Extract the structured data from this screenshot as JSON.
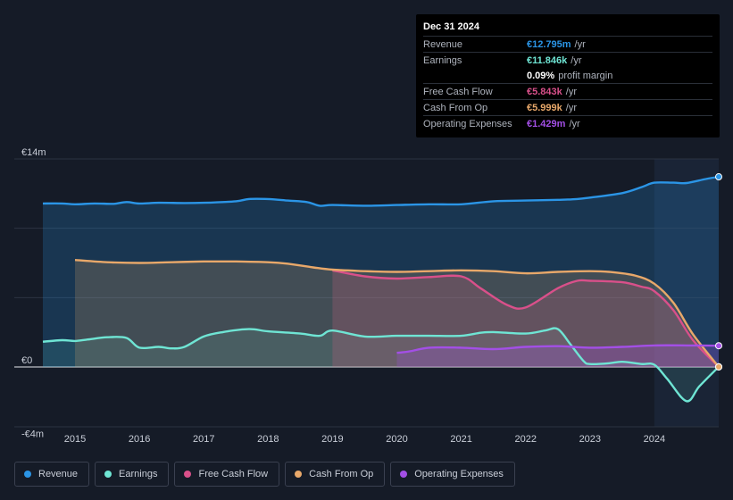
{
  "chart_data": {
    "type": "area",
    "y_labels": [
      "€14m",
      "€0",
      "-€4m"
    ],
    "x_ticks": [
      "2015",
      "2016",
      "2017",
      "2018",
      "2019",
      "2020",
      "2021",
      "2022",
      "2023",
      "2024"
    ],
    "ylim": [
      -4,
      14
    ],
    "xlim": [
      2014.5,
      2025.0
    ],
    "forecast_start": 2024.0,
    "series": [
      {
        "name": "Revenue",
        "color": "#2b95e6",
        "points": [
          [
            2014.5,
            11.0
          ],
          [
            2014.8,
            11.0
          ],
          [
            2015.0,
            10.95
          ],
          [
            2015.3,
            11.0
          ],
          [
            2015.6,
            10.98
          ],
          [
            2015.8,
            11.1
          ],
          [
            2016.0,
            11.0
          ],
          [
            2016.3,
            11.05
          ],
          [
            2016.7,
            11.03
          ],
          [
            2017.0,
            11.05
          ],
          [
            2017.5,
            11.15
          ],
          [
            2017.7,
            11.3
          ],
          [
            2018.0,
            11.3
          ],
          [
            2018.3,
            11.2
          ],
          [
            2018.6,
            11.1
          ],
          [
            2018.8,
            10.85
          ],
          [
            2019.0,
            10.9
          ],
          [
            2019.5,
            10.85
          ],
          [
            2020.0,
            10.9
          ],
          [
            2020.5,
            10.95
          ],
          [
            2021.0,
            10.95
          ],
          [
            2021.5,
            11.15
          ],
          [
            2022.0,
            11.2
          ],
          [
            2022.5,
            11.25
          ],
          [
            2022.8,
            11.3
          ],
          [
            2023.0,
            11.4
          ],
          [
            2023.5,
            11.7
          ],
          [
            2023.8,
            12.1
          ],
          [
            2024.0,
            12.4
          ],
          [
            2024.3,
            12.4
          ],
          [
            2024.5,
            12.38
          ],
          [
            2024.8,
            12.65
          ],
          [
            2025.0,
            12.795
          ]
        ]
      },
      {
        "name": "Earnings",
        "color": "#6fe5d4",
        "points": [
          [
            2014.5,
            1.7
          ],
          [
            2014.8,
            1.8
          ],
          [
            2015.0,
            1.75
          ],
          [
            2015.2,
            1.85
          ],
          [
            2015.5,
            2.0
          ],
          [
            2015.8,
            1.95
          ],
          [
            2016.0,
            1.3
          ],
          [
            2016.3,
            1.35
          ],
          [
            2016.5,
            1.25
          ],
          [
            2016.7,
            1.35
          ],
          [
            2017.0,
            2.05
          ],
          [
            2017.3,
            2.35
          ],
          [
            2017.7,
            2.55
          ],
          [
            2018.0,
            2.4
          ],
          [
            2018.5,
            2.25
          ],
          [
            2018.8,
            2.1
          ],
          [
            2019.0,
            2.45
          ],
          [
            2019.5,
            2.05
          ],
          [
            2020.0,
            2.1
          ],
          [
            2020.5,
            2.1
          ],
          [
            2021.0,
            2.1
          ],
          [
            2021.3,
            2.3
          ],
          [
            2021.5,
            2.35
          ],
          [
            2022.0,
            2.25
          ],
          [
            2022.3,
            2.45
          ],
          [
            2022.5,
            2.55
          ],
          [
            2022.7,
            1.5
          ],
          [
            2022.9,
            0.4
          ],
          [
            2023.0,
            0.2
          ],
          [
            2023.3,
            0.25
          ],
          [
            2023.5,
            0.35
          ],
          [
            2023.8,
            0.2
          ],
          [
            2024.0,
            0.15
          ],
          [
            2024.2,
            -0.8
          ],
          [
            2024.5,
            -2.3
          ],
          [
            2024.7,
            -1.3
          ],
          [
            2025.0,
            0.011846
          ]
        ]
      },
      {
        "name": "Free Cash Flow",
        "color": "#d9508a",
        "points": [
          [
            2019.0,
            6.5
          ],
          [
            2019.5,
            6.1
          ],
          [
            2020.0,
            5.95
          ],
          [
            2020.5,
            6.05
          ],
          [
            2021.0,
            6.1
          ],
          [
            2021.3,
            5.3
          ],
          [
            2021.7,
            4.2
          ],
          [
            2022.0,
            4.0
          ],
          [
            2022.5,
            5.3
          ],
          [
            2022.8,
            5.8
          ],
          [
            2023.0,
            5.8
          ],
          [
            2023.5,
            5.7
          ],
          [
            2023.8,
            5.4
          ],
          [
            2024.0,
            5.1
          ],
          [
            2024.3,
            3.8
          ],
          [
            2024.6,
            1.8
          ],
          [
            2025.0,
            0.005843
          ]
        ]
      },
      {
        "name": "Cash From Op",
        "color": "#e8a86a",
        "points": [
          [
            2015.0,
            7.2
          ],
          [
            2015.5,
            7.05
          ],
          [
            2016.0,
            7.0
          ],
          [
            2016.5,
            7.05
          ],
          [
            2017.0,
            7.1
          ],
          [
            2017.5,
            7.1
          ],
          [
            2018.0,
            7.05
          ],
          [
            2018.3,
            6.95
          ],
          [
            2018.7,
            6.7
          ],
          [
            2019.0,
            6.55
          ],
          [
            2019.5,
            6.45
          ],
          [
            2020.0,
            6.4
          ],
          [
            2020.5,
            6.45
          ],
          [
            2021.0,
            6.5
          ],
          [
            2021.5,
            6.45
          ],
          [
            2022.0,
            6.3
          ],
          [
            2022.5,
            6.4
          ],
          [
            2023.0,
            6.45
          ],
          [
            2023.3,
            6.4
          ],
          [
            2023.7,
            6.15
          ],
          [
            2024.0,
            5.6
          ],
          [
            2024.3,
            4.3
          ],
          [
            2024.6,
            2.2
          ],
          [
            2025.0,
            0.005999
          ]
        ]
      },
      {
        "name": "Operating Expenses",
        "color": "#a34fe6",
        "points": [
          [
            2020.0,
            0.95
          ],
          [
            2020.2,
            1.05
          ],
          [
            2020.5,
            1.3
          ],
          [
            2021.0,
            1.3
          ],
          [
            2021.5,
            1.2
          ],
          [
            2022.0,
            1.35
          ],
          [
            2022.5,
            1.4
          ],
          [
            2023.0,
            1.3
          ],
          [
            2023.5,
            1.35
          ],
          [
            2024.0,
            1.45
          ],
          [
            2024.5,
            1.45
          ],
          [
            2025.0,
            1.429
          ]
        ]
      }
    ]
  },
  "tooltip": {
    "date": "Dec 31 2024",
    "rows": [
      {
        "label": "Revenue",
        "value": "€12.795m",
        "unit": "/yr",
        "color": "#2b95e6"
      },
      {
        "label": "Earnings",
        "value": "€11.846k",
        "unit": "/yr",
        "color": "#6fe5d4"
      },
      {
        "label": "",
        "value": "0.09%",
        "unit": "profit margin",
        "color": "#ffffff"
      },
      {
        "label": "Free Cash Flow",
        "value": "€5.843k",
        "unit": "/yr",
        "color": "#d9508a"
      },
      {
        "label": "Cash From Op",
        "value": "€5.999k",
        "unit": "/yr",
        "color": "#e8a86a"
      },
      {
        "label": "Operating Expenses",
        "value": "€1.429m",
        "unit": "/yr",
        "color": "#a34fe6"
      }
    ]
  },
  "legend": [
    {
      "label": "Revenue",
      "color": "#2b95e6"
    },
    {
      "label": "Earnings",
      "color": "#6fe5d4"
    },
    {
      "label": "Free Cash Flow",
      "color": "#d9508a"
    },
    {
      "label": "Cash From Op",
      "color": "#e8a86a"
    },
    {
      "label": "Operating Expenses",
      "color": "#a34fe6"
    }
  ]
}
